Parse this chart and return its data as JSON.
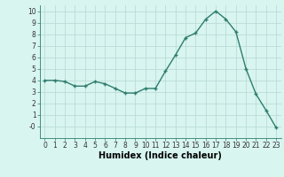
{
  "x": [
    0,
    1,
    2,
    3,
    4,
    5,
    6,
    7,
    8,
    9,
    10,
    11,
    12,
    13,
    14,
    15,
    16,
    17,
    18,
    19,
    20,
    21,
    22,
    23
  ],
  "y": [
    4.0,
    4.0,
    3.9,
    3.5,
    3.5,
    3.9,
    3.7,
    3.3,
    2.9,
    2.9,
    3.3,
    3.3,
    4.8,
    6.2,
    7.7,
    8.1,
    9.3,
    10.0,
    9.3,
    8.2,
    5.0,
    2.8,
    1.4,
    -0.1
  ],
  "line_color": "#2e7d6e",
  "marker": "+",
  "marker_size": 3.5,
  "line_width": 1.0,
  "xlabel": "Humidex (Indice chaleur)",
  "xlabel_fontsize": 7,
  "background_color": "#d8f5f0",
  "grid_color": "#b8d8d2",
  "xlim": [
    -0.5,
    23.5
  ],
  "ylim": [
    -1.0,
    10.5
  ],
  "yticks": [
    0,
    1,
    2,
    3,
    4,
    5,
    6,
    7,
    8,
    9,
    10
  ],
  "ytick_labels": [
    "-0",
    "1",
    "2",
    "3",
    "4",
    "5",
    "6",
    "7",
    "8",
    "9",
    "10"
  ],
  "xticks": [
    0,
    1,
    2,
    3,
    4,
    5,
    6,
    7,
    8,
    9,
    10,
    11,
    12,
    13,
    14,
    15,
    16,
    17,
    18,
    19,
    20,
    21,
    22,
    23
  ],
  "tick_fontsize": 5.5,
  "markeredgewidth": 1.0
}
